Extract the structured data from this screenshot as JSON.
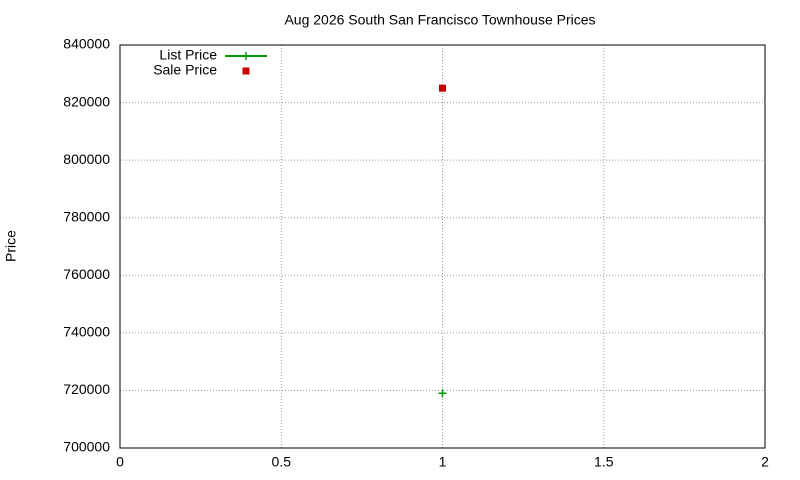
{
  "chart_data": {
    "type": "scatter",
    "title": "Aug 2026 South San Francisco Townhouse Prices",
    "y_label": "Price",
    "x": [
      1
    ],
    "series": [
      {
        "name": "List Price",
        "color": "#009900",
        "marker": "plus",
        "legend_line": true,
        "values": [
          719000
        ]
      },
      {
        "name": "Sale Price",
        "color": "#cc0000",
        "marker": "square",
        "legend_line": false,
        "values": [
          825000
        ]
      }
    ],
    "xlim": [
      0,
      2
    ],
    "xticks": [
      0,
      0.5,
      1,
      1.5,
      2
    ],
    "ylim": [
      700000,
      840000
    ],
    "yticks": [
      700000,
      720000,
      740000,
      760000,
      780000,
      800000,
      820000,
      840000
    ],
    "grid": true,
    "legend": "top-left"
  }
}
